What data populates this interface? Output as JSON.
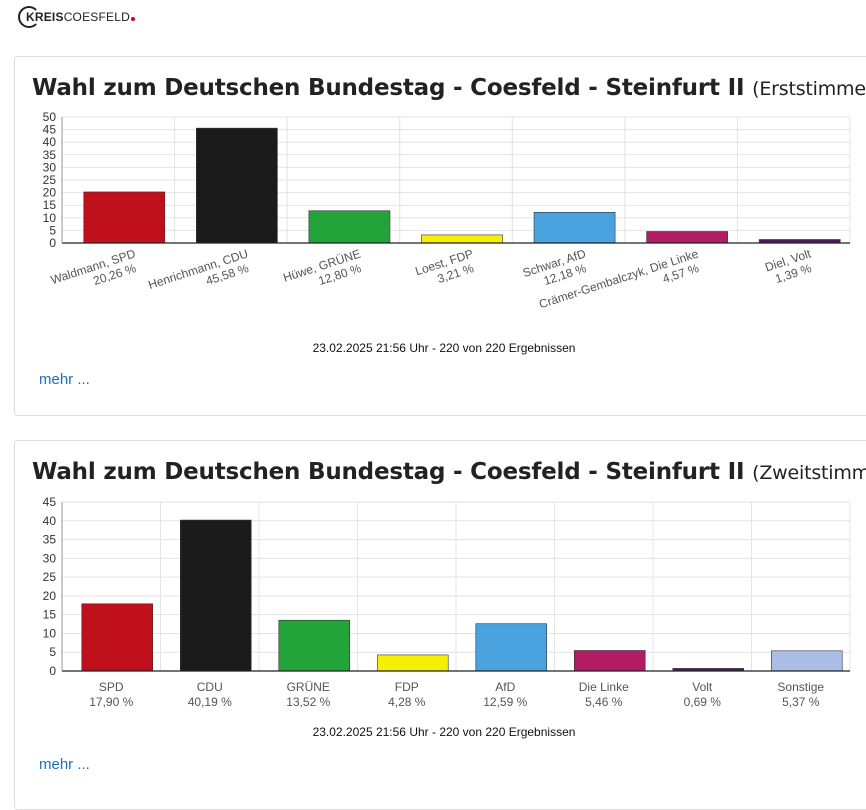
{
  "logo": {
    "bold": "KREIS",
    "rest": "COESFELD"
  },
  "cards": [
    {
      "title": "Wahl zum Deutschen Bundestag - Coesfeld - Steinfurt II",
      "subtitle": "(Erststimmen)",
      "timestamp": "23.02.2025 21:56 Uhr - 220 von 220 Ergebnissen",
      "more": "mehr ..."
    },
    {
      "title": "Wahl zum Deutschen Bundestag - Coesfeld - Steinfurt II",
      "subtitle": "(Zweitstimmen)",
      "timestamp": "23.02.2025 21:56 Uhr - 220 von 220 Ergebnissen",
      "more": "mehr ..."
    }
  ],
  "chart_data": [
    {
      "type": "bar",
      "title": "Wahl zum Deutschen Bundestag - Coesfeld - Steinfurt II (Erststimmen)",
      "categories": [
        "Waldmann, SPD",
        "Henrichmann, CDU",
        "Hüwe, GRÜNE",
        "Loest, FDP",
        "Schwar, AfD",
        "Crämer-Gembalczyk, Die Linke",
        "Diel, Volt"
      ],
      "value_labels": [
        "20,26 %",
        "45,58 %",
        "12,80 %",
        "3,21 %",
        "12,18 %",
        "4,57 %",
        "1,39 %"
      ],
      "values": [
        20.26,
        45.58,
        12.8,
        3.21,
        12.18,
        4.57,
        1.39
      ],
      "colors": [
        "#c0101c",
        "#1b1b1b",
        "#22a43a",
        "#f7ef00",
        "#4aa3df",
        "#b11c64",
        "#4a1b5f"
      ],
      "yticks": [
        "0",
        "5",
        "10",
        "15",
        "20",
        "25",
        "30",
        "35",
        "40",
        "45",
        "50"
      ],
      "ylim": [
        0,
        50
      ],
      "grid": true,
      "rotated_labels": true
    },
    {
      "type": "bar",
      "title": "Wahl zum Deutschen Bundestag - Coesfeld - Steinfurt II (Zweitstimmen)",
      "categories": [
        "SPD",
        "CDU",
        "GRÜNE",
        "FDP",
        "AfD",
        "Die Linke",
        "Volt",
        "Sonstige"
      ],
      "value_labels": [
        "17,90 %",
        "40,19 %",
        "13,52 %",
        "4,28 %",
        "12,59 %",
        "5,46 %",
        "0,69 %",
        "5,37 %"
      ],
      "values": [
        17.9,
        40.19,
        13.52,
        4.28,
        12.59,
        5.46,
        0.69,
        5.37
      ],
      "colors": [
        "#c0101c",
        "#1b1b1b",
        "#22a43a",
        "#f7ef00",
        "#4aa3df",
        "#b11c64",
        "#4a1b5f",
        "#a9bde6"
      ],
      "yticks": [
        "0",
        "5",
        "10",
        "15",
        "20",
        "25",
        "30",
        "35",
        "40",
        "45"
      ],
      "ylim": [
        0,
        45
      ],
      "grid": true,
      "rotated_labels": false
    }
  ]
}
